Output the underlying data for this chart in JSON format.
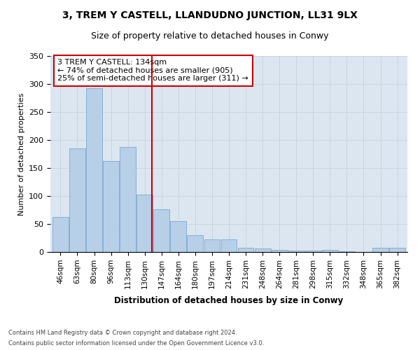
{
  "title1": "3, TREM Y CASTELL, LLANDUDNO JUNCTION, LL31 9LX",
  "title2": "Size of property relative to detached houses in Conwy",
  "xlabel": "Distribution of detached houses by size in Conwy",
  "ylabel": "Number of detached properties",
  "categories": [
    "46sqm",
    "63sqm",
    "80sqm",
    "96sqm",
    "113sqm",
    "130sqm",
    "147sqm",
    "164sqm",
    "180sqm",
    "197sqm",
    "214sqm",
    "231sqm",
    "248sqm",
    "264sqm",
    "281sqm",
    "298sqm",
    "315sqm",
    "332sqm",
    "348sqm",
    "365sqm",
    "382sqm"
  ],
  "values": [
    63,
    185,
    293,
    163,
    188,
    103,
    76,
    55,
    30,
    22,
    22,
    8,
    6,
    4,
    3,
    3,
    4,
    1,
    0,
    7,
    7
  ],
  "bar_color": "#b8cfe8",
  "bar_edge_color": "#7aaad0",
  "grid_color": "#c8d4e4",
  "bg_color": "#dce6f0",
  "vline_color": "#cc0000",
  "annotation_line1": "3 TREM Y CASTELL: 134sqm",
  "annotation_line2": "← 74% of detached houses are smaller (905)",
  "annotation_line3": "25% of semi-detached houses are larger (311) →",
  "annotation_box_color": "#cc0000",
  "footer1": "Contains HM Land Registry data © Crown copyright and database right 2024.",
  "footer2": "Contains public sector information licensed under the Open Government Licence v3.0.",
  "ylim": [
    0,
    350
  ],
  "yticks": [
    0,
    50,
    100,
    150,
    200,
    250,
    300,
    350
  ],
  "vline_index": 5.42
}
